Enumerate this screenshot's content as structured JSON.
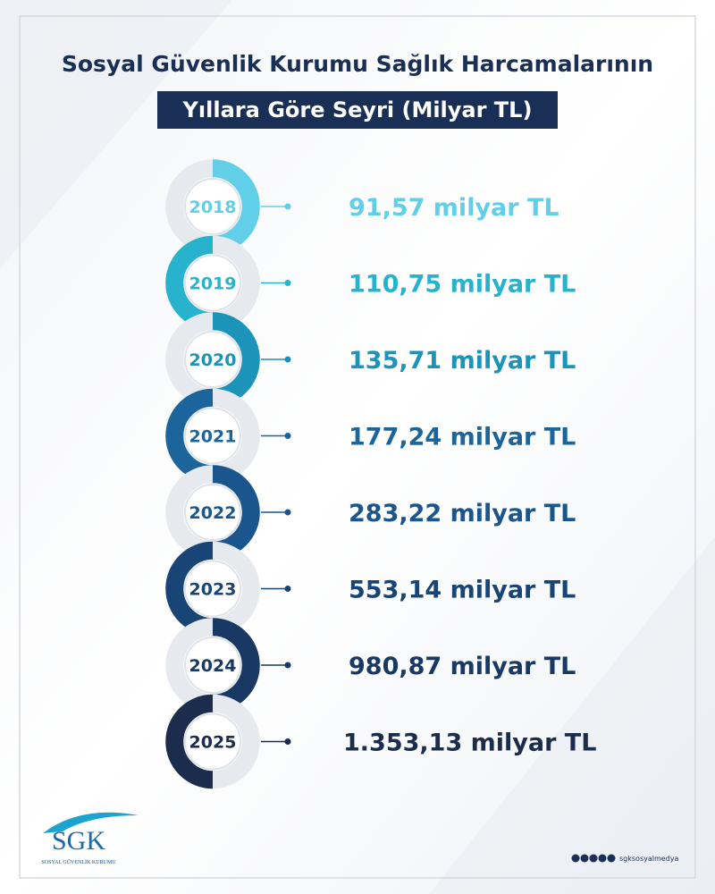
{
  "header": {
    "title_line1": "Sosyal Güvenlik Kurumu Sağlık Harcamalarının",
    "title_line2": "Yıllara Göre Seyri (Milyar TL)"
  },
  "timeline": [
    {
      "year": "2018",
      "value": "91,57 milyar TL",
      "color": "#62cfe8"
    },
    {
      "year": "2019",
      "value": "110,75 milyar TL",
      "color": "#27b3cd"
    },
    {
      "year": "2020",
      "value": "135,71 milyar TL",
      "color": "#1c93b8"
    },
    {
      "year": "2021",
      "value": "177,24 milyar TL",
      "color": "#1b659c"
    },
    {
      "year": "2022",
      "value": "283,22 milyar TL",
      "color": "#1a568d"
    },
    {
      "year": "2023",
      "value": "553,14 milyar TL",
      "color": "#184476"
    },
    {
      "year": "2024",
      "value": "980,87 milyar TL",
      "color": "#173963"
    },
    {
      "year": "2025",
      "value": "1.353,13 milyar TL",
      "color": "#1b2c4c"
    }
  ],
  "footer": {
    "logo": "SGK",
    "logo_subtitle": "SOSYAL GÜVENLİK KURUMU",
    "handle": "sgksosyalmedya"
  }
}
